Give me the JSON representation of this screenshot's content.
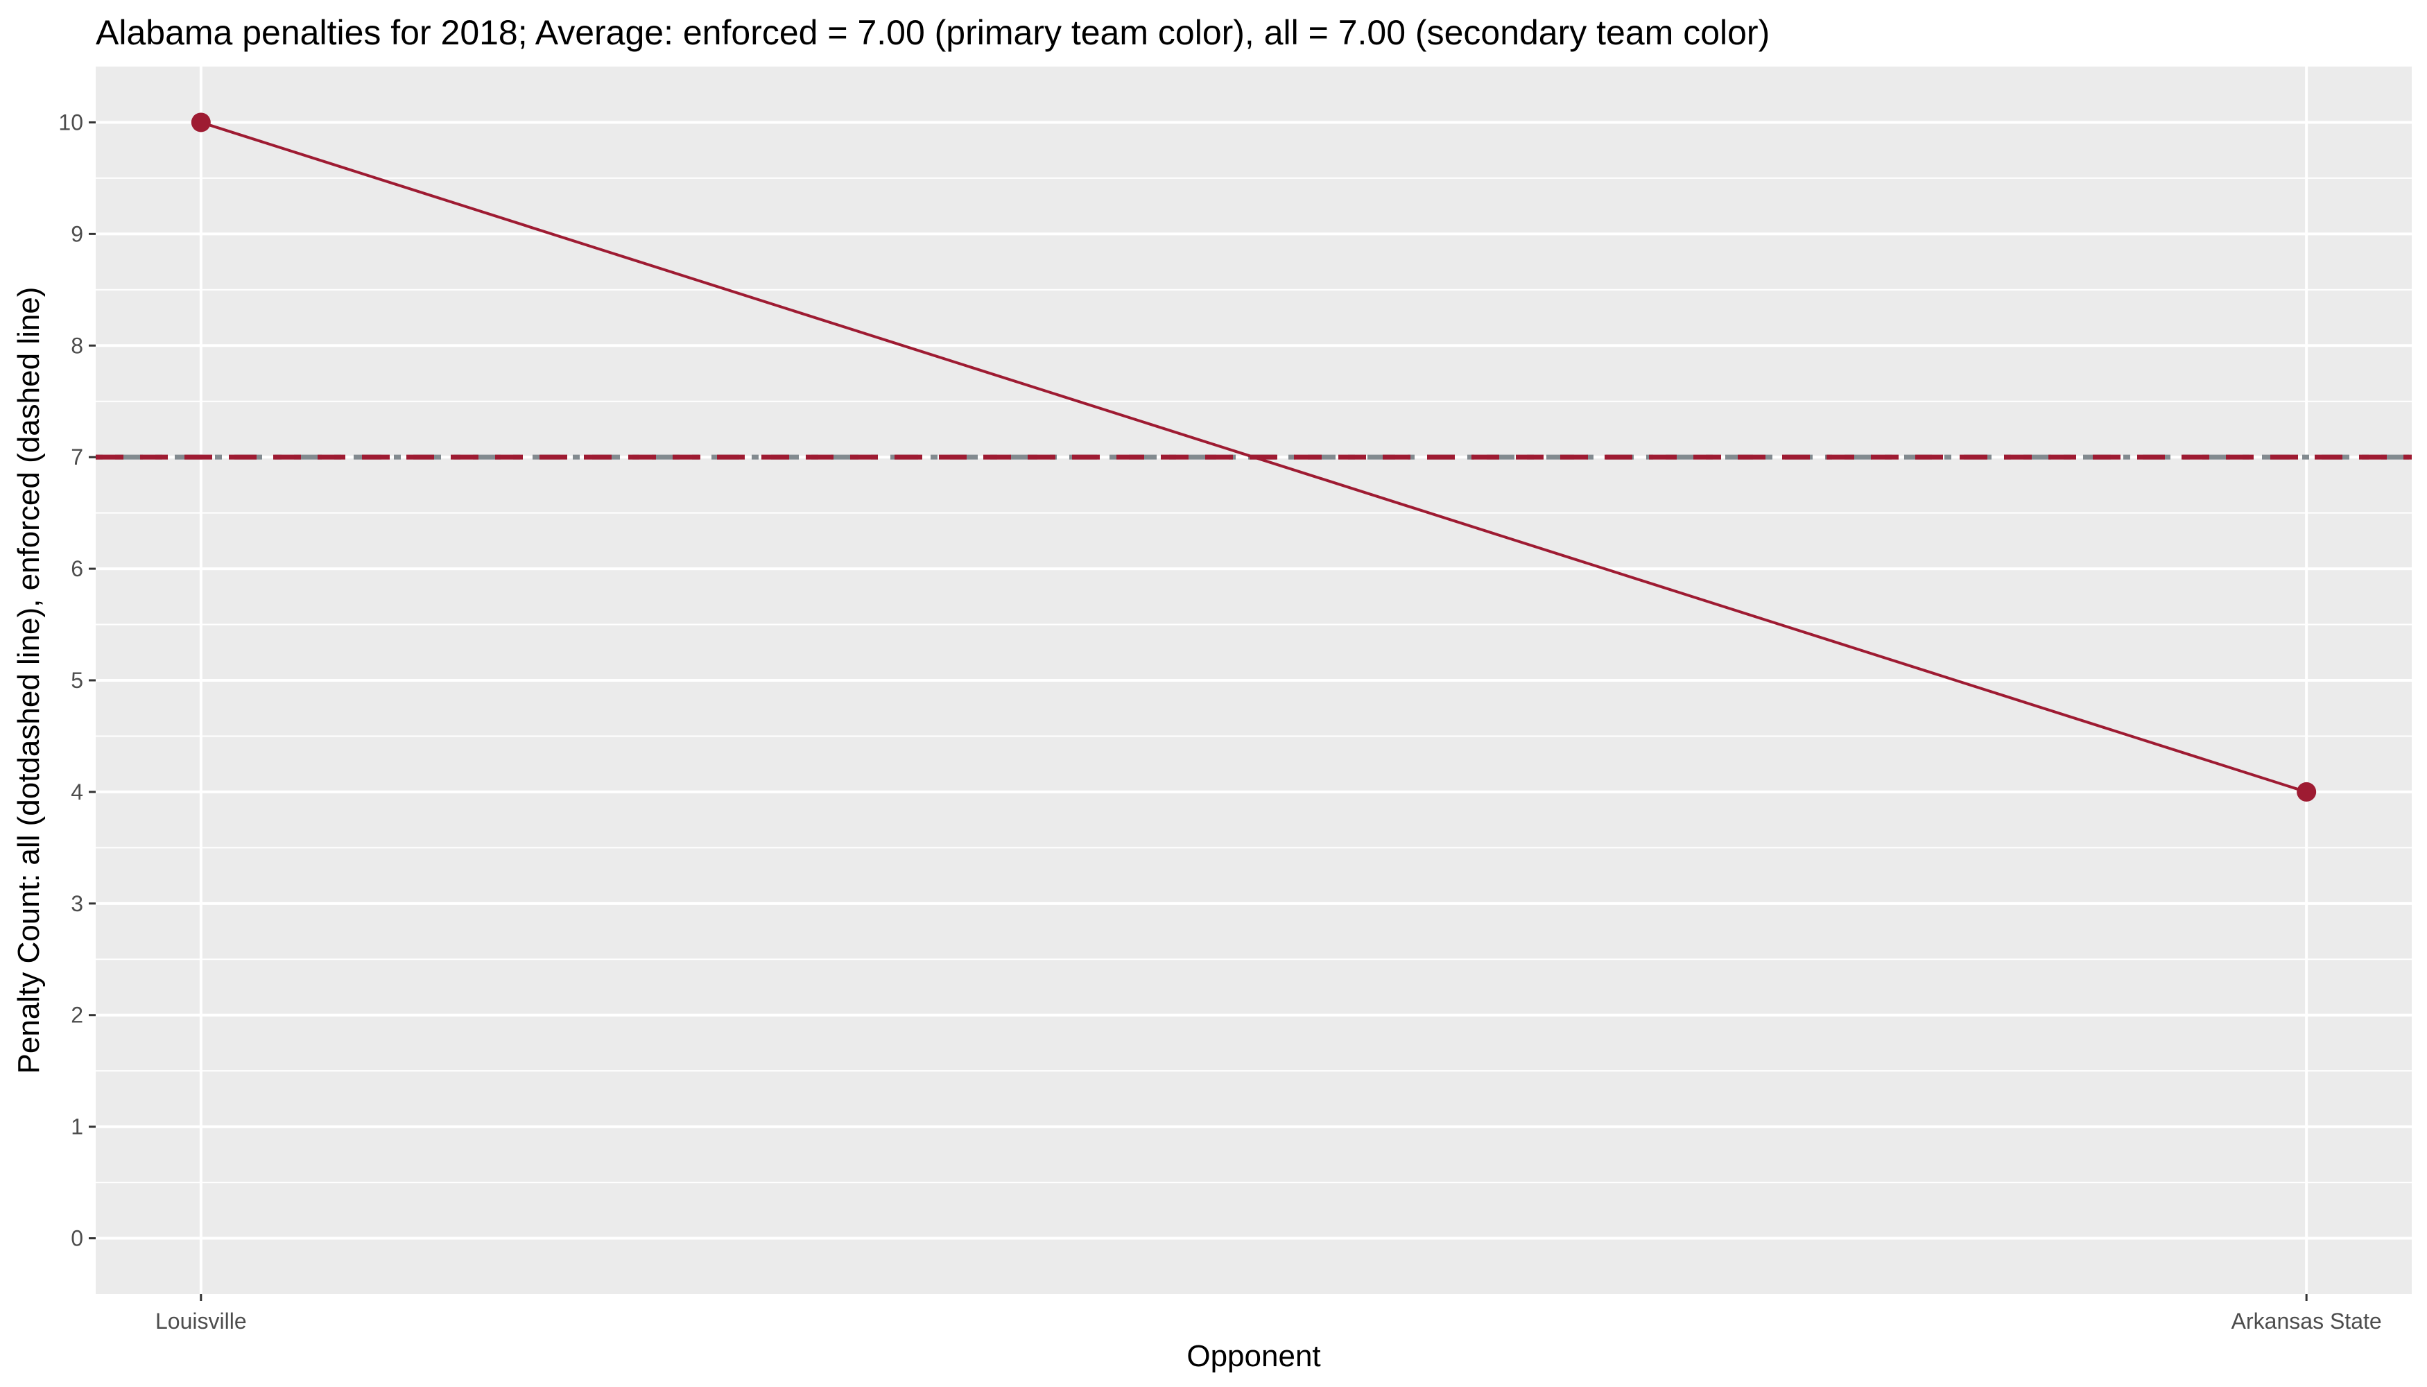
{
  "chart_data": {
    "type": "line",
    "title": "Alabama penalties for 2018; Average: enforced = 7.00 (primary team color), all = 7.00 (secondary team color)",
    "xlabel": "Opponent",
    "ylabel": "Penalty Count: all (dotdashed line), enforced (dashed line)",
    "categories": [
      "Louisville",
      "Arkansas State"
    ],
    "yticks": [
      "0",
      "1",
      "2",
      "3",
      "4",
      "5",
      "6",
      "7",
      "8",
      "9",
      "10"
    ],
    "ylim": [
      -0.5,
      10.5
    ],
    "series": [
      {
        "values": [
          10,
          4
        ],
        "color": "#9E1B32"
      }
    ],
    "reference_lines": [
      {
        "value": 7.0,
        "style": "dotdash",
        "color": "#828A8F"
      },
      {
        "value": 7.0,
        "style": "dashed",
        "color": "#9E1B32"
      }
    ],
    "panel_background": "#EBEBEB",
    "grid": true,
    "legend": "none"
  }
}
